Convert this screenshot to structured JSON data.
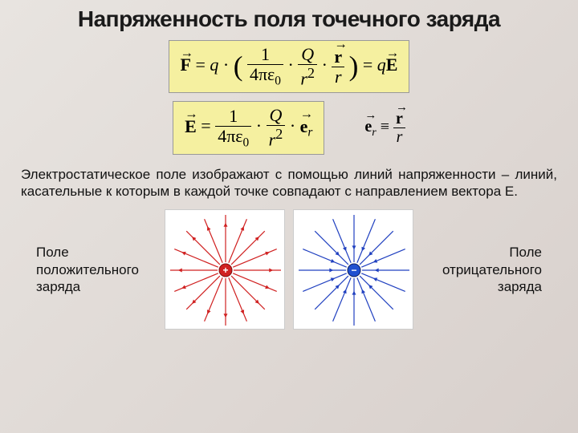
{
  "title": "Напряженность поля точечного заряда",
  "title_fontsize": 28,
  "formula1_html": "<span class='vec'><b>F</b></span> = <i>q</i> · <span style='font-size:1.6em;vertical-align:middle'>(</span> <span class='frac'><span class='num'>1</span><span class='den'>4πε<sub>0</sub></span></span> · <span class='frac'><span class='num'><i>Q</i></span><span class='den'><i>r</i><sup>2</sup></span></span> · <span class='frac'><span class='num'><span class='vec'><b>r</b></span></span><span class='den'><i>r</i></span></span> <span style='font-size:1.6em;vertical-align:middle'>)</span> = <i>q</i><span class='vec'><b>E</b></span>",
  "formula1_fontsize": 22,
  "formula2_html": "<span class='vec'><b>E</b></span> = <span class='frac'><span class='num'>1</span><span class='den'>4πε<sub>0</sub></span></span> · <span class='frac'><span class='num'><i>Q</i></span><span class='den'><i>r</i><sup>2</sup></span></span> · <span class='vec'><b>e</b></span><sub><i>r</i></sub>",
  "formula2_fontsize": 22,
  "side_formula_html": "<span class='vec'><b>e</b></span><sub><i>r</i></sub> ≡ <span class='frac'><span class='num'><span class='vec'><b>r</b></span></span><span class='den'><i>r</i></span></span>",
  "side_formula_fontsize": 20,
  "paragraph": "Электростатическое поле изображают с помощью линий напряженности – линий, касательные к которым в каждой точке совпадают с направлением вектора E.",
  "paragraph_fontsize": 17,
  "label_positive": "Поле положительного заряда",
  "label_negative": "Поле отрицательного заряда",
  "label_fontsize": 17,
  "positive_diagram": {
    "line_color": "#d02020",
    "charge_fill": "#d02020",
    "charge_stroke": "#801010",
    "direction": "outward",
    "lines": 16,
    "bg": "#ffffff",
    "size": 150
  },
  "negative_diagram": {
    "line_color": "#2040c0",
    "charge_fill": "#2050d0",
    "charge_stroke": "#102060",
    "direction": "inward",
    "lines": 16,
    "bg": "#ffffff",
    "size": 150
  },
  "formula_box_bg": "#f5f0a0",
  "body_bg": "linear-gradient(135deg, #e8e4e0 0%, #d8d0cc 100%)"
}
